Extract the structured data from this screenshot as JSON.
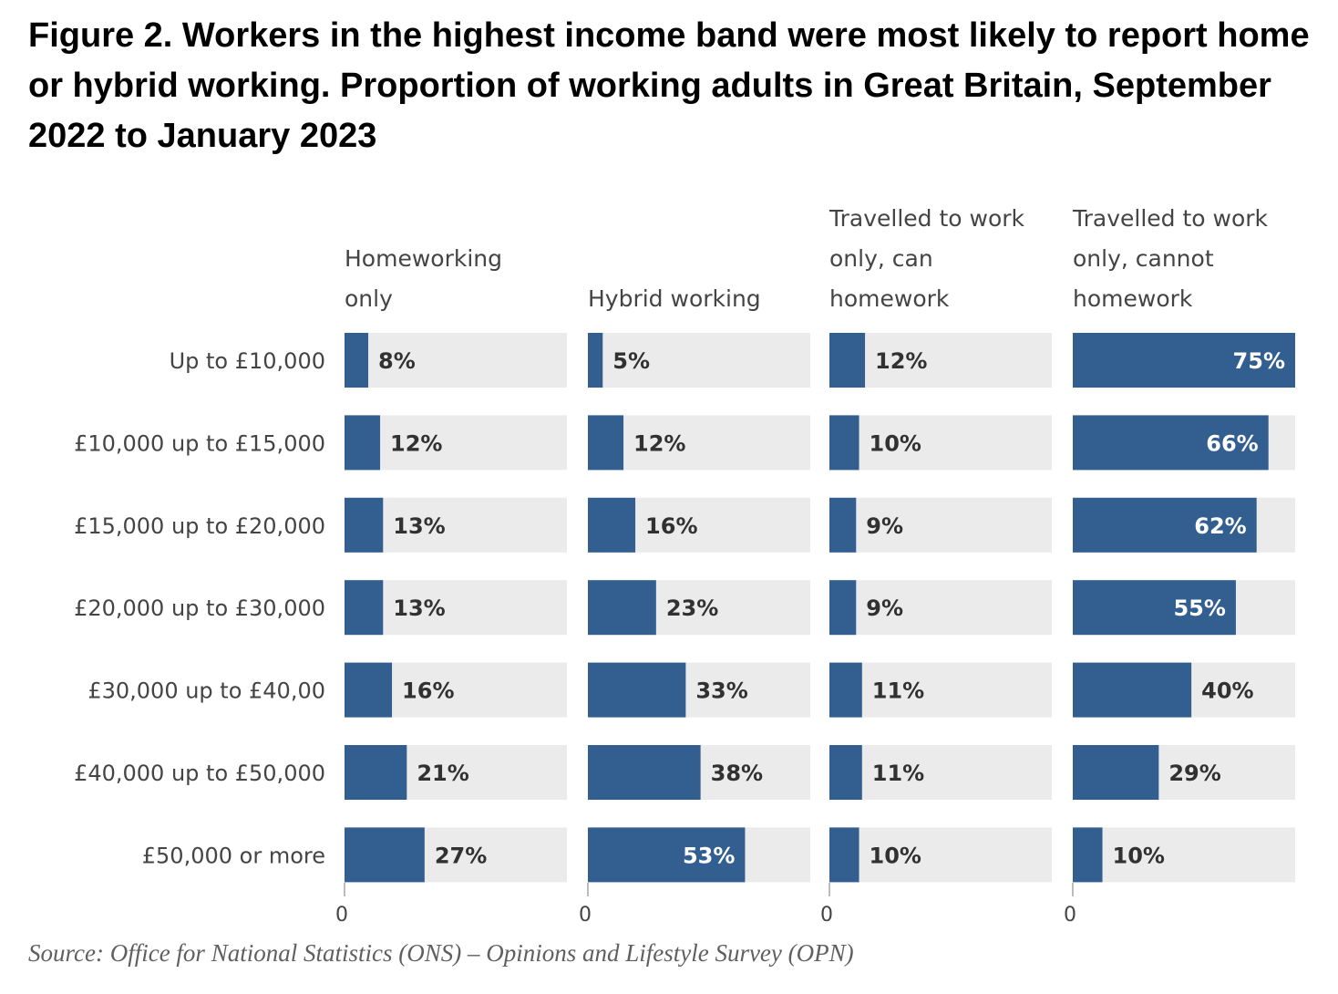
{
  "title": "Figure 2. Workers in the highest income band were most likely to report home or hybrid working. Proportion of working adults in Great Britain, September 2022 to January 2023",
  "source": "Source: Office for National Statistics (ONS) – Opinions and Lifestyle Survey (OPN)",
  "colors": {
    "bar": "#335f90",
    "track": "#ebebeb",
    "label_dark": "#323132",
    "label_light": "#ffffff",
    "category_text": "#444444",
    "axis": "#bcbcbc",
    "source_text": "#5f5f5f"
  },
  "chart_data": {
    "type": "bar",
    "orientation": "horizontal",
    "layout": "small-multiples",
    "title": "Figure 2. Workers in the highest income band were most likely to report home or hybrid working. Proportion of working adults in Great Britain, September 2022 to January 2023",
    "categories": [
      "Up to £10,000",
      "£10,000 up to £15,000",
      "£15,000 up to £20,000",
      "£20,000 up to £30,000",
      "£30,000 up to £40,00",
      "£40,000 up to £50,000",
      "£50,000 or more"
    ],
    "xlim": [
      0,
      75
    ],
    "unit": "%",
    "axis_tick_label": "0",
    "series": [
      {
        "name": "Homeworking only",
        "title_lines": [
          "Homeworking",
          "only"
        ],
        "values": [
          8,
          12,
          13,
          13,
          16,
          21,
          27
        ],
        "labels": [
          "8%",
          "12%",
          "13%",
          "13%",
          "16%",
          "21%",
          "27%"
        ]
      },
      {
        "name": "Hybrid working",
        "title_lines": [
          "Hybrid working"
        ],
        "values": [
          5,
          12,
          16,
          23,
          33,
          38,
          53
        ],
        "labels": [
          "5%",
          "12%",
          "16%",
          "23%",
          "33%",
          "38%",
          "53%"
        ]
      },
      {
        "name": "Travelled to work only, can homework",
        "title_lines": [
          "Travelled to work",
          "only, can",
          "homework"
        ],
        "values": [
          12,
          10,
          9,
          9,
          11,
          11,
          10
        ],
        "labels": [
          "12%",
          "10%",
          "9%",
          "9%",
          "11%",
          "11%",
          "10%"
        ]
      },
      {
        "name": "Travelled to work only, cannot homework",
        "title_lines": [
          "Travelled to work",
          "only, cannot",
          "homework"
        ],
        "values": [
          75,
          66,
          62,
          55,
          40,
          29,
          10
        ],
        "labels": [
          "75%",
          "66%",
          "62%",
          "55%",
          "40%",
          "29%",
          "10%"
        ]
      }
    ],
    "source": "Source: Office for National Statistics (ONS) – Opinions and Lifestyle Survey (OPN)"
  }
}
